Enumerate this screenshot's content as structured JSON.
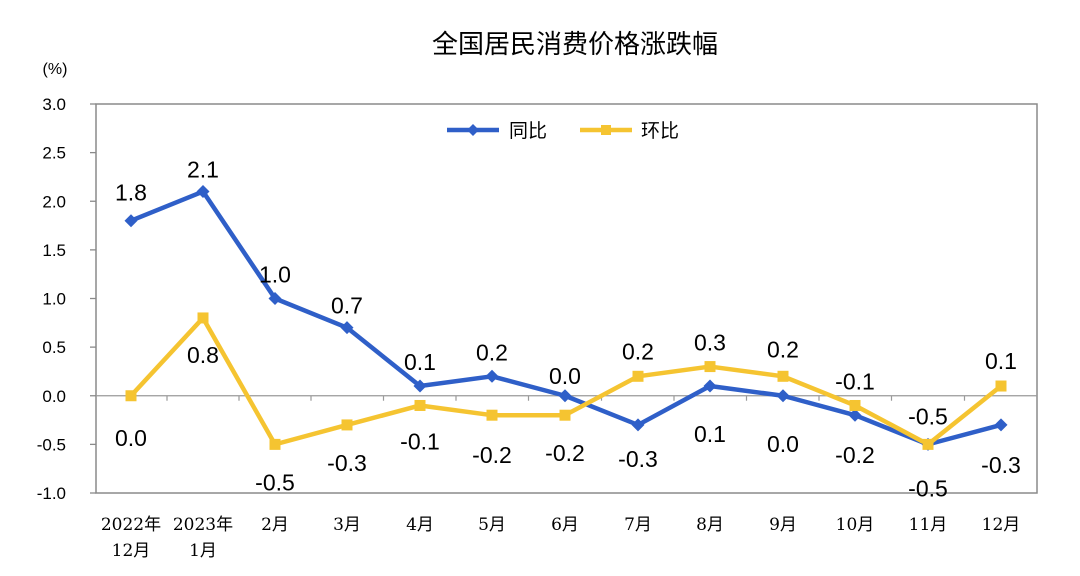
{
  "chart_data": {
    "type": "line",
    "title": "全国居民消费价格涨跌幅",
    "unit_label": "(%)",
    "ylim": [
      -1.0,
      3.0
    ],
    "yticks": [
      "3.0",
      "2.5",
      "2.0",
      "1.5",
      "1.0",
      "0.5",
      "0.0",
      "-0.5",
      "-1.0"
    ],
    "categories": [
      [
        "2022年",
        "12月"
      ],
      [
        "2023年",
        "1月"
      ],
      [
        "2月"
      ],
      [
        "3月"
      ],
      [
        "4月"
      ],
      [
        "5月"
      ],
      [
        "6月"
      ],
      [
        "7月"
      ],
      [
        "8月"
      ],
      [
        "9月"
      ],
      [
        "10月"
      ],
      [
        "11月"
      ],
      [
        "12月"
      ]
    ],
    "legend_position": "top-center",
    "series": [
      {
        "name": "同比",
        "color": "#2f5fc8",
        "marker": "diamond",
        "values": [
          1.8,
          2.1,
          1.0,
          0.7,
          0.1,
          0.2,
          0.0,
          -0.3,
          0.1,
          0.0,
          -0.2,
          -0.5,
          -0.3
        ],
        "labels": [
          "1.8",
          "2.1",
          "1.0",
          "0.7",
          "0.1",
          "0.2",
          "0.0",
          "-0.3",
          "0.1",
          "0.0",
          "-0.2",
          "-0.5",
          "-0.3"
        ]
      },
      {
        "name": "环比",
        "color": "#f5c431",
        "marker": "square",
        "values": [
          0.0,
          0.8,
          -0.5,
          -0.3,
          -0.1,
          -0.2,
          -0.2,
          0.2,
          0.3,
          0.2,
          -0.1,
          -0.5,
          0.1
        ],
        "labels": [
          "0.0",
          "0.8",
          "-0.5",
          "-0.3",
          "-0.1",
          "-0.2",
          "-0.2",
          "0.2",
          "0.3",
          "0.2",
          "-0.1",
          "-0.5",
          "0.1"
        ]
      }
    ]
  }
}
